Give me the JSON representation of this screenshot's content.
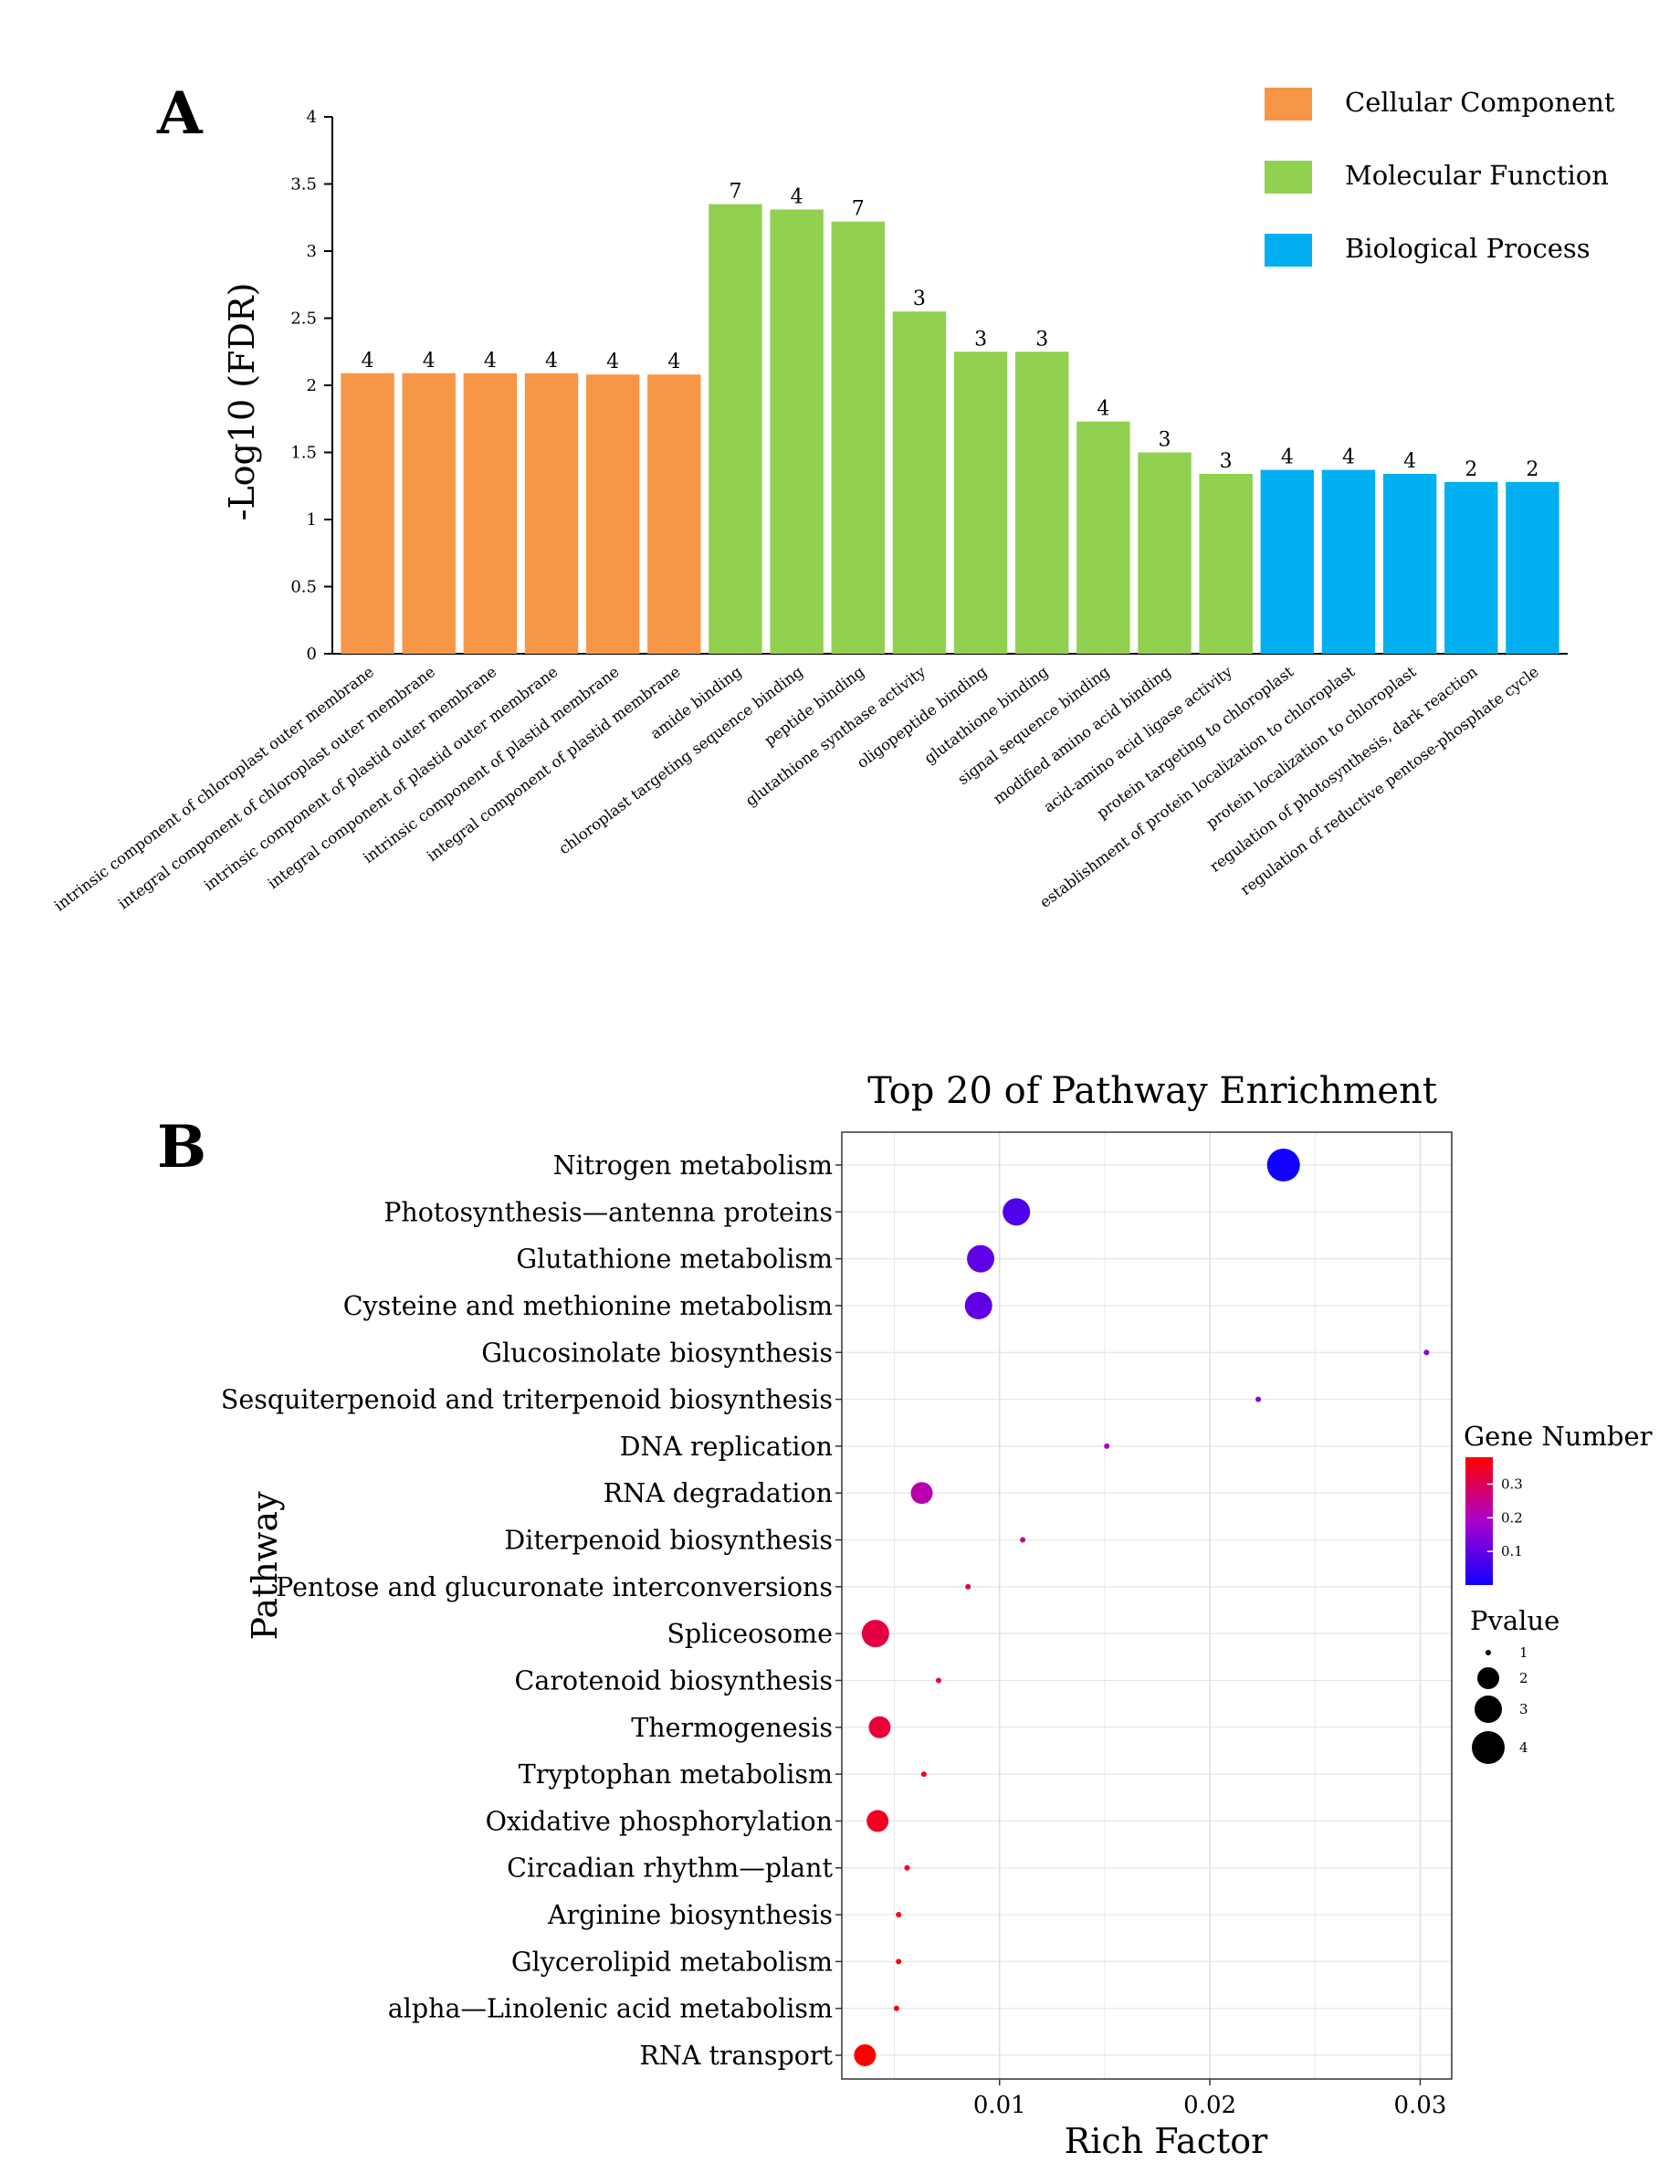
{
  "colors": {
    "cellular": "#F79646",
    "molecular": "#92D050",
    "biological": "#00B0F0",
    "gradient_high": "#FF0000",
    "gradient_mid": "#AA00CC",
    "gradient_low": "#1100FF"
  },
  "chart_data": [
    {
      "type": "bar",
      "panel_label": "A",
      "ylabel": "-Log10 (FDR)",
      "ylim": [
        0,
        4
      ],
      "yticks": [
        "0",
        "0.5",
        "1",
        "1.5",
        "2",
        "2.5",
        "3",
        "3.5",
        "4"
      ],
      "legend": [
        {
          "name": "Cellular Component",
          "color": "#F79646"
        },
        {
          "name": "Molecular Function",
          "color": "#92D050"
        },
        {
          "name": "Biological Process",
          "color": "#00B0F0"
        }
      ],
      "categories": [
        "intrinsic component of chloroplast outer membrane",
        "integral component of chloroplast outer membrane",
        "intrinsic component of plastid outer membrane",
        "integral component of plastid outer membrane",
        "intrinsic component of plastid membrane",
        "integral component of plastid membrane",
        "amide binding",
        "chloroplast targeting sequence binding",
        "peptide binding",
        "glutathione synthase activity",
        "oligopeptide binding",
        "glutathione binding",
        "signal sequence binding",
        "modified amino acid binding",
        "acid-amino acid ligase activity",
        "protein targeting to chloroplast",
        "establishment of protein localization to chloroplast",
        "protein localization to chloroplast",
        "regulation of photosynthesis, dark reaction",
        "regulation of reductive pentose-phosphate cycle"
      ],
      "groups": [
        0,
        0,
        0,
        0,
        0,
        0,
        1,
        1,
        1,
        1,
        1,
        1,
        1,
        1,
        1,
        2,
        2,
        2,
        2,
        2
      ],
      "values": [
        2.09,
        2.09,
        2.09,
        2.09,
        2.08,
        2.08,
        3.35,
        3.31,
        3.22,
        2.55,
        2.25,
        2.25,
        1.73,
        1.5,
        1.34,
        1.37,
        1.37,
        1.34,
        1.28,
        1.28
      ],
      "labels": [
        "4",
        "4",
        "4",
        "4",
        "4",
        "4",
        "7",
        "4",
        "7",
        "3",
        "3",
        "3",
        "4",
        "3",
        "3",
        "4",
        "4",
        "4",
        "2",
        "2"
      ]
    },
    {
      "type": "scatter",
      "panel_label": "B",
      "title": "Top 20 of Pathway Enrichment",
      "xlabel": "Rich Factor",
      "ylabel": "Pathway",
      "xlim": [
        0.0025,
        0.0315
      ],
      "xticks": [
        0.01,
        0.02,
        0.03
      ],
      "xtick_labels": [
        "0.01",
        "0.02",
        "0.03"
      ],
      "grid": true,
      "color_legend": {
        "title": "Gene Number",
        "ticks": [
          "0.3",
          "0.2",
          "0.1"
        ],
        "tick_values": [
          0.3,
          0.2,
          0.1
        ],
        "range": [
          0,
          0.38
        ]
      },
      "size_legend": {
        "title": "Pvalue",
        "ticks": [
          "1",
          "2",
          "3",
          "4"
        ]
      },
      "pathways": [
        "Nitrogen metabolism",
        "Photosynthesis—antenna proteins",
        "Glutathione metabolism",
        "Cysteine and methionine metabolism",
        "Glucosinolate biosynthesis",
        "Sesquiterpenoid and triterpenoid biosynthesis",
        "DNA replication",
        "RNA degradation",
        "Diterpenoid biosynthesis",
        "Pentose and glucuronate interconversions",
        "Spliceosome",
        "Carotenoid biosynthesis",
        "Thermogenesis",
        "Tryptophan metabolism",
        "Oxidative phosphorylation",
        "Circadian rhythm—plant",
        "Arginine biosynthesis",
        "Glycerolipid metabolism",
        "alpha—Linolenic acid metabolism",
        "RNA transport"
      ],
      "rich_factor": [
        0.0235,
        0.0108,
        0.0091,
        0.009,
        0.0303,
        0.0223,
        0.0151,
        0.0063,
        0.0111,
        0.0085,
        0.0041,
        0.0071,
        0.0043,
        0.0064,
        0.0042,
        0.0056,
        0.0052,
        0.0052,
        0.0051,
        0.0036
      ],
      "gene_number": [
        0.0,
        0.08,
        0.1,
        0.1,
        0.15,
        0.15,
        0.18,
        0.22,
        0.25,
        0.3,
        0.32,
        0.33,
        0.33,
        0.35,
        0.35,
        0.36,
        0.37,
        0.37,
        0.38,
        0.38
      ],
      "pvalue": [
        4,
        3,
        3,
        3,
        1,
        1,
        1,
        2,
        1,
        1,
        3,
        1,
        2,
        1,
        2,
        1,
        1,
        1,
        1,
        2
      ]
    }
  ]
}
